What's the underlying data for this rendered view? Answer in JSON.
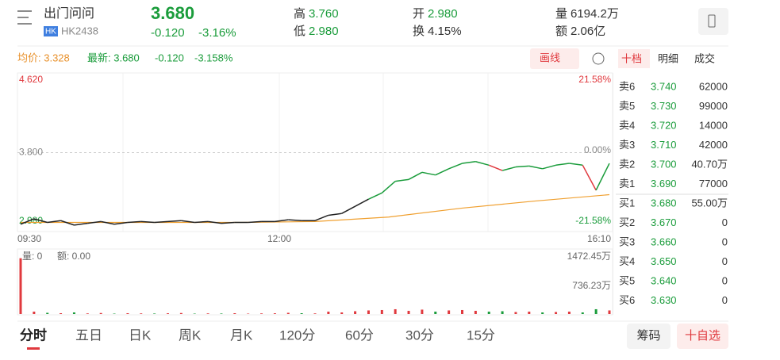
{
  "header": {
    "name": "出门问问",
    "tag": "HK",
    "code": "HK2438",
    "price": "3.680",
    "change": "-0.120",
    "pct": "-3.16%",
    "stats": [
      {
        "label": "高",
        "value": "3.760"
      },
      {
        "label": "低",
        "value": "2.980"
      },
      {
        "label": "开",
        "value": "2.980"
      },
      {
        "label": "换",
        "value": "4.15%"
      },
      {
        "label": "量",
        "value": "6194.2万"
      },
      {
        "label": "额",
        "value": "2.06亿"
      }
    ]
  },
  "infobar": {
    "avg": "均价: 3.328",
    "latest": "最新: 3.680",
    "change": "-0.120",
    "pct": "-3.158%",
    "draw_button": "画线"
  },
  "side_tabs": [
    "十档",
    "明细",
    "成交"
  ],
  "intraday": {
    "price_axis": [
      {
        "value": 4.62,
        "label": "4.620"
      },
      {
        "value": 3.8,
        "label": "3.800"
      },
      {
        "value": 2.98,
        "label": "2.980"
      }
    ],
    "pct_axis": [
      "21.58%",
      "0.00%",
      "-21.58%"
    ],
    "times": [
      "09:30",
      "12:00",
      "16:10"
    ],
    "prices": [
      3.0,
      3.06,
      3.02,
      3.04,
      2.99,
      3.01,
      3.03,
      3.0,
      3.02,
      3.03,
      3.02,
      3.03,
      3.04,
      3.02,
      3.03,
      3.01,
      3.02,
      3.02,
      3.03,
      3.03,
      3.05,
      3.04,
      3.04,
      3.1,
      3.12,
      3.2,
      3.28,
      3.35,
      3.48,
      3.5,
      3.58,
      3.55,
      3.62,
      3.68,
      3.7,
      3.66,
      3.6,
      3.64,
      3.65,
      3.62,
      3.66,
      3.68,
      3.66,
      3.38,
      3.68
    ],
    "avg": [
      3.02,
      3.02,
      3.02,
      3.02,
      3.03,
      3.08,
      3.18,
      3.26,
      3.33
    ],
    "volume_texts": [
      "量: 0",
      "额: 0.00"
    ],
    "volume_axis": [
      {
        "value": 1472.45,
        "label": "1472.45万"
      },
      {
        "value": 736.23,
        "label": "736.23万"
      }
    ],
    "volumes": [
      1400,
      60,
      30,
      20,
      40,
      15,
      25,
      10,
      20,
      15,
      12,
      18,
      25,
      10,
      15,
      12,
      20,
      10,
      15,
      18,
      30,
      20,
      15,
      60,
      40,
      70,
      90,
      100,
      120,
      80,
      110,
      60,
      90,
      100,
      80,
      60,
      70,
      50,
      60,
      40,
      50,
      60,
      40,
      120,
      90
    ]
  },
  "order_book": [
    [
      "卖6",
      "3.740",
      "62000"
    ],
    [
      "卖5",
      "3.730",
      "99000"
    ],
    [
      "卖4",
      "3.720",
      "14000"
    ],
    [
      "卖3",
      "3.710",
      "42000"
    ],
    [
      "卖2",
      "3.700",
      "40.70万"
    ],
    [
      "卖1",
      "3.690",
      "77000"
    ],
    [
      "买1",
      "3.680",
      "55.00万"
    ],
    [
      "买2",
      "3.670",
      "0"
    ],
    [
      "买3",
      "3.660",
      "0"
    ],
    [
      "买4",
      "3.650",
      "0"
    ],
    [
      "买5",
      "3.640",
      "0"
    ],
    [
      "买6",
      "3.630",
      "0"
    ]
  ],
  "bottom_tabs": [
    "分时",
    "五日",
    "日K",
    "周K",
    "月K",
    "120分",
    "60分",
    "30分",
    "15分"
  ],
  "bottom_buttons": [
    "筹码",
    "十自选"
  ]
}
